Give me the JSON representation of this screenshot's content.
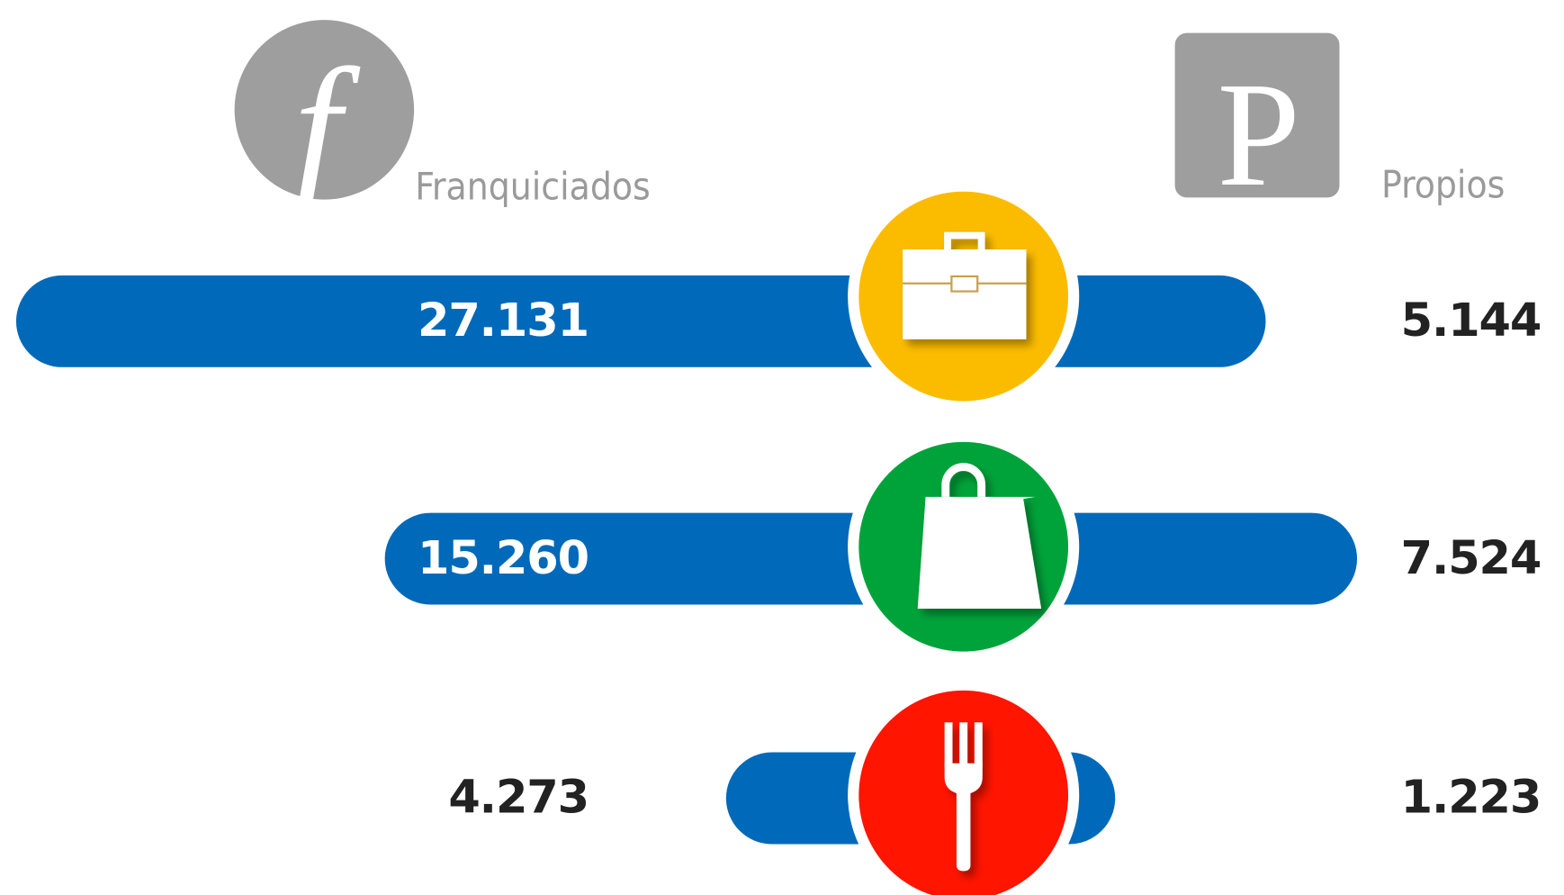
{
  "chart_data": {
    "type": "butterfly",
    "categories": [
      null,
      null,
      null
    ],
    "series": [
      {
        "name": "Franquiciados",
        "color": "#0069b9",
        "values": [
          27131,
          15260,
          4273
        ],
        "value_labels": [
          "27.131",
          "15.260",
          "4.273"
        ]
      },
      {
        "name": "Propios",
        "color": "#0069b9",
        "values": [
          5144,
          7524,
          1223
        ],
        "value_labels": [
          "5.144",
          "7.524",
          "1.223"
        ]
      }
    ]
  }
}
